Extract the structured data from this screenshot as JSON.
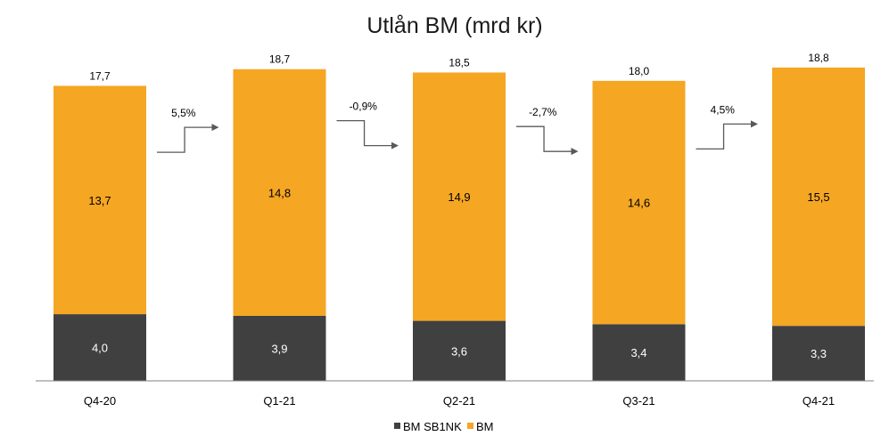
{
  "chart_data": {
    "type": "bar",
    "stacked": true,
    "title": "Utlån BM (mrd kr)",
    "categories": [
      "Q4-20",
      "Q1-21",
      "Q2-21",
      "Q3-21",
      "Q4-21"
    ],
    "series": [
      {
        "name": "BM SB1NK",
        "color": "#404040",
        "values": [
          4.0,
          3.9,
          3.6,
          3.4,
          3.3
        ],
        "labels": [
          "4,0",
          "3,9",
          "3,6",
          "3,4",
          "3,3"
        ]
      },
      {
        "name": "BM",
        "color": "#f5a623",
        "values": [
          13.7,
          14.8,
          14.9,
          14.6,
          15.5
        ],
        "labels": [
          "13,7",
          "14,8",
          "14,9",
          "14,6",
          "15,5"
        ]
      }
    ],
    "totals": [
      "17,7",
      "18,7",
      "18,5",
      "18,0",
      "18,8"
    ],
    "growth": [
      {
        "label": "5,5%",
        "direction": "up"
      },
      {
        "label": "-0,9%",
        "direction": "down"
      },
      {
        "label": "-2,7%",
        "direction": "down"
      },
      {
        "label": "4,5%",
        "direction": "up"
      }
    ],
    "ylim": [
      0,
      20
    ],
    "grid": false,
    "legend_position": "bottom"
  }
}
